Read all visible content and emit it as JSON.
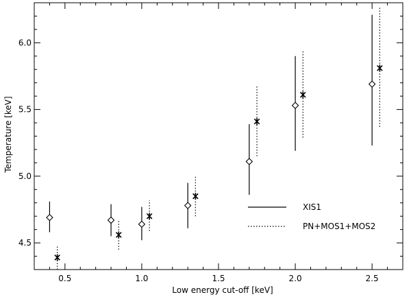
{
  "chart_data": {
    "type": "scatter",
    "title": "",
    "xlabel": "Low energy cut-off [keV]",
    "ylabel": "Temperature [keV]",
    "xlim": [
      0.3,
      2.7
    ],
    "ylim": [
      4.3,
      6.3
    ],
    "x_ticks": [
      "0.5",
      "1.0",
      "1.5",
      "2.0",
      "2.5"
    ],
    "y_ticks": [
      "4.5",
      "5.0",
      "5.5",
      "6.0"
    ],
    "grid": false,
    "legend_position": "bottom-right",
    "series": [
      {
        "name": "XIS1",
        "marker": "diamond",
        "errorbar_style": "solid",
        "points": [
          {
            "x": 0.4,
            "y": 4.69,
            "ylow": 4.58,
            "yhigh": 4.81
          },
          {
            "x": 0.8,
            "y": 4.67,
            "ylow": 4.55,
            "yhigh": 4.79
          },
          {
            "x": 1.0,
            "y": 4.64,
            "ylow": 4.52,
            "yhigh": 4.77
          },
          {
            "x": 1.3,
            "y": 4.78,
            "ylow": 4.61,
            "yhigh": 4.95
          },
          {
            "x": 1.7,
            "y": 5.11,
            "ylow": 4.86,
            "yhigh": 5.39
          },
          {
            "x": 2.0,
            "y": 5.53,
            "ylow": 5.19,
            "yhigh": 5.9
          },
          {
            "x": 2.5,
            "y": 5.69,
            "ylow": 5.23,
            "yhigh": 6.21
          }
        ]
      },
      {
        "name": "PN+MOS1+MOS2",
        "marker": "asterisk",
        "errorbar_style": "dotted",
        "points": [
          {
            "x": 0.45,
            "y": 4.39,
            "ylow": 4.3,
            "yhigh": 4.48
          },
          {
            "x": 0.85,
            "y": 4.56,
            "ylow": 4.45,
            "yhigh": 4.67
          },
          {
            "x": 1.05,
            "y": 4.7,
            "ylow": 4.59,
            "yhigh": 4.82
          },
          {
            "x": 1.35,
            "y": 4.85,
            "ylow": 4.7,
            "yhigh": 5.0
          },
          {
            "x": 1.75,
            "y": 5.41,
            "ylow": 5.15,
            "yhigh": 5.68
          },
          {
            "x": 2.05,
            "y": 5.61,
            "ylow": 5.29,
            "yhigh": 5.94
          },
          {
            "x": 2.55,
            "y": 5.81,
            "ylow": 5.37,
            "yhigh": 6.27
          }
        ]
      }
    ]
  }
}
